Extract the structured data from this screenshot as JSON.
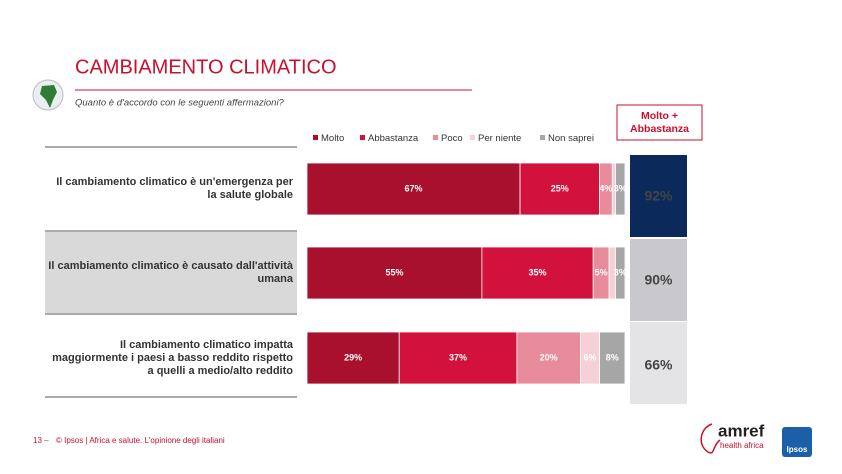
{
  "header": {
    "title": "CAMBIAMENTO CLIMATICO",
    "subtitle": "Quanto è d'accordo con le seguenti affermazioni?"
  },
  "chart_data": {
    "type": "stacked-bar-horizontal",
    "categories": [
      "Il cambiamento climatico è un'emergenza per la salute globale",
      "Il cambiamento climatico è causato dall'attività umana",
      "Il cambiamento climatico impatta maggiormente i paesi a basso reddito rispetto a quelli a medio/alto reddito"
    ],
    "xlim": [
      0,
      100
    ],
    "series": [
      {
        "name": "Molto",
        "color": "#a8102e",
        "values": [
          67,
          55,
          29
        ],
        "value_labels": [
          "67%",
          "55%",
          "29%"
        ]
      },
      {
        "name": "Abbastanza",
        "color": "#d2123c",
        "values": [
          25,
          35,
          37
        ],
        "value_labels": [
          "25%",
          "35%",
          "37%"
        ]
      },
      {
        "name": "Poco",
        "color": "#e88b9b",
        "values": [
          4,
          5,
          20
        ],
        "value_labels": [
          "4%",
          "5%",
          "20%"
        ]
      },
      {
        "name": "Per niente",
        "color": "#f6d0d6",
        "values": [
          1,
          2,
          6
        ],
        "value_labels": [
          null,
          null,
          "6%"
        ]
      },
      {
        "name": "Non saprei",
        "color": "#a6a6a6",
        "values": [
          3,
          3,
          8
        ],
        "value_labels": [
          "3%",
          "3%",
          "8%"
        ]
      }
    ],
    "totals": {
      "title": "Molto + Abbastanza",
      "values": [
        92,
        90,
        66
      ],
      "value_labels": [
        "92%",
        "90%",
        "66%"
      ]
    }
  },
  "footer": {
    "page": "13 –",
    "text": "© Ipsos | Africa e salute. L'opinione degli italiani",
    "logo_amref": "amref",
    "logo_amref_sub": "health africa",
    "logo_ipsos": "Ipsos"
  }
}
